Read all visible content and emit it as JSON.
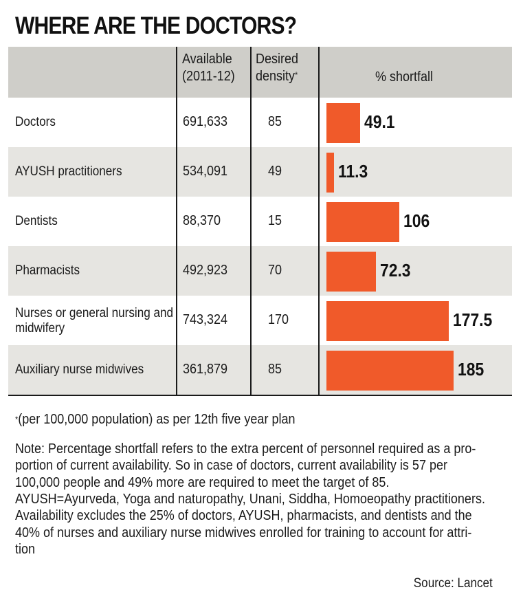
{
  "title": "WHERE ARE THE DOCTORS?",
  "columns": {
    "available_line1": "Available",
    "available_line2": "(2011-12)",
    "desired_line1": "Desired",
    "desired_line2": "density",
    "desired_marker": "*",
    "shortfall": "% shortfall"
  },
  "chart_data": {
    "type": "bar",
    "title": "WHERE ARE THE DOCTORS?",
    "xlabel": "",
    "ylabel": "% shortfall",
    "orientation": "horizontal",
    "categories": [
      "Doctors",
      "AYUSH practitioners",
      "Dentists",
      "Pharmacists",
      "Nurses or general nursing and midwifery",
      "Auxiliary nurse midwives"
    ],
    "rows": [
      {
        "name_lines": [
          "Doctors"
        ],
        "available": "691,633",
        "desired": "85",
        "shortfall": 49.1,
        "shortfall_label": "49.1"
      },
      {
        "name_lines": [
          "AYUSH practitioners"
        ],
        "available": "534,091",
        "desired": "49",
        "shortfall": 11.3,
        "shortfall_label": "11.3"
      },
      {
        "name_lines": [
          "Dentists"
        ],
        "available": "88,370",
        "desired": "15",
        "shortfall": 106,
        "shortfall_label": "106"
      },
      {
        "name_lines": [
          "Pharmacists"
        ],
        "available": "492,923",
        "desired": "70",
        "shortfall": 72.3,
        "shortfall_label": "72.3"
      },
      {
        "name_lines": [
          "Nurses or general nursing and",
          "midwifery"
        ],
        "available": "743,324",
        "desired": "170",
        "shortfall": 177.5,
        "shortfall_label": "177.5"
      },
      {
        "name_lines": [
          "Auxiliary nurse midwives"
        ],
        "available": "361,879",
        "desired": "85",
        "shortfall": 185,
        "shortfall_label": "185"
      }
    ],
    "values": [
      49.1,
      11.3,
      106,
      72.3,
      177.5,
      185
    ],
    "bar_color": "#f05a2a"
  },
  "footnote": {
    "marker": "*",
    "text": "(per 100,000 population) as per 12th five year plan"
  },
  "note_lines": [
    "Note: Percentage shortfall refers to the extra percent of personnel required as a pro-",
    "portion of current availability. So in case of doctors, current availability is 57 per",
    "100,000 people and 49% more are required to meet the target of 85.",
    "AYUSH=Ayurveda, Yoga and naturopathy, Unani, Siddha, Homoeopathy practitioners.",
    "Availability excludes the 25% of doctors, AYUSH, pharmacists, and dentists and the",
    "40% of nurses and auxiliary nurse midwives enrolled for training to account for attri-",
    "tion"
  ],
  "source": "Source: Lancet"
}
